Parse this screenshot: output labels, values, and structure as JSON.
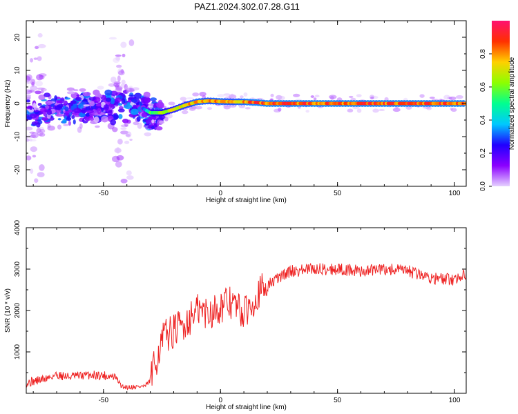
{
  "title": "PAZ1.2024.302.07.28.G11",
  "chart_data": [
    {
      "type": "heatmap",
      "xlabel": "Height of straight line (km)",
      "ylabel": "Frequency (Hz)",
      "xlim": [
        -83,
        105
      ],
      "ylim": [
        -25,
        25
      ],
      "x_ticks": [
        -50,
        0,
        50,
        100
      ],
      "y_ticks": [
        -20,
        -10,
        0,
        10,
        20
      ],
      "colorbar": {
        "label": "Normalized spectral amplitude",
        "range": [
          0,
          1
        ],
        "ticks": [
          0.0,
          0.2,
          0.4,
          0.6,
          0.8
        ],
        "colors": [
          "#e6d2ff",
          "#8b00ff",
          "#2000ff",
          "#00c8ff",
          "#00ff90",
          "#8cff00",
          "#ffd000",
          "#ff3000",
          "#ff1070"
        ]
      },
      "ridge": {
        "x": [
          -83,
          -70,
          -60,
          -50,
          -40,
          -33,
          -30,
          -25,
          -20,
          -15,
          -10,
          -5,
          0,
          5,
          10,
          15,
          20,
          30,
          50,
          80,
          105
        ],
        "frequency": [
          -1.5,
          -1.5,
          -1.0,
          -1.0,
          -1.0,
          -1.5,
          -2.8,
          -2.8,
          -1.8,
          -0.5,
          0.5,
          0.8,
          0.6,
          0.5,
          0.5,
          0.3,
          0.0,
          0.0,
          0.0,
          0.0,
          0.0
        ],
        "amplitude": [
          0.35,
          0.35,
          0.35,
          0.35,
          0.35,
          0.3,
          0.6,
          0.7,
          0.75,
          0.8,
          0.9,
          0.85,
          0.9,
          0.85,
          0.9,
          0.95,
          0.95,
          0.95,
          0.95,
          0.95,
          0.95
        ]
      }
    },
    {
      "type": "line",
      "xlabel": "Height of straight line (km)",
      "ylabel": "SNR (10 * v/v)",
      "xlim": [
        -83,
        105
      ],
      "ylim": [
        0,
        4000
      ],
      "x_ticks": [
        -50,
        0,
        50,
        100
      ],
      "y_ticks": [
        1000,
        2000,
        3000,
        4000
      ],
      "series": [
        {
          "color": "#ee2222",
          "x": [
            -83,
            -75,
            -70,
            -65,
            -60,
            -55,
            -50,
            -45,
            -42,
            -40,
            -35,
            -32,
            -30,
            -27,
            -24,
            -20,
            -15,
            -10,
            -5,
            0,
            5,
            10,
            15,
            20,
            25,
            30,
            40,
            50,
            60,
            70,
            80,
            90,
            95,
            100,
            105
          ],
          "values": [
            250,
            350,
            450,
            400,
            420,
            450,
            430,
            400,
            150,
            150,
            160,
            180,
            300,
            900,
            1400,
            1500,
            1700,
            2000,
            1950,
            2100,
            2200,
            1900,
            2350,
            2600,
            2800,
            2950,
            3000,
            3000,
            2950,
            3000,
            2950,
            2800,
            2750,
            2750,
            2900
          ]
        }
      ]
    }
  ]
}
